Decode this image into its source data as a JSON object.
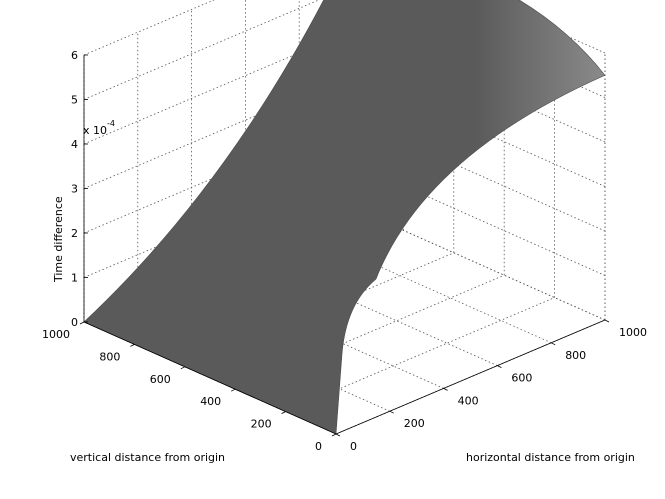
{
  "chart_data": {
    "type": "surface",
    "title": "",
    "xlabel": "horizontal distance from origin",
    "ylabel": "vertical distance from origin",
    "zlabel": "Time difference",
    "z_exponent_label": "x 10",
    "z_exponent_power": "-4",
    "x_ticks": [
      "0",
      "200",
      "400",
      "600",
      "800",
      "1000"
    ],
    "y_ticks": [
      "0",
      "200",
      "400",
      "600",
      "800",
      "1000"
    ],
    "z_ticks": [
      "0",
      "1",
      "2",
      "3",
      "4",
      "5",
      "6"
    ],
    "xlim": [
      0,
      1000
    ],
    "ylim": [
      0,
      1000
    ],
    "zlim": [
      0,
      6
    ],
    "grid": true,
    "surface_color": "#5a5a5a",
    "surface_edge_highlight": "#8a8a8a",
    "corner_values": {
      "x0_y0": 0,
      "x1000_y0": 5.5,
      "x0_y1000": 0,
      "x1000_y1000": 6
    }
  }
}
